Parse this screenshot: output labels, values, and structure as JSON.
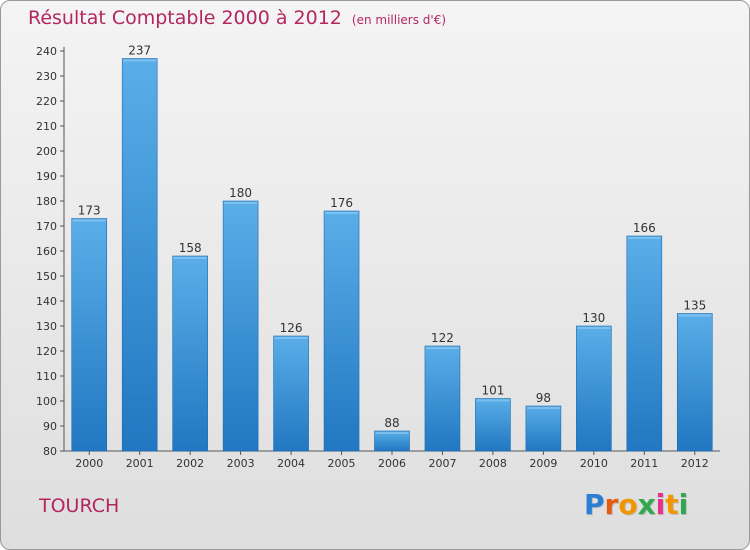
{
  "title": "Résultat Comptable 2000 à 2012",
  "subtitle": "(en milliers d'€)",
  "commune": "TOURCH",
  "brand": {
    "letters": [
      "P",
      "r",
      "o",
      "x",
      "i",
      "t",
      "i"
    ],
    "colors": [
      "#2a7fd4",
      "#e65c0f",
      "#f29600",
      "#2fa84f",
      "#e6308a",
      "#f29600",
      "#2fa84f"
    ]
  },
  "colors": {
    "bar_top": "#5aaee8",
    "bar_bottom": "#2177c1",
    "title": "#b3275e"
  },
  "chart_data": {
    "type": "bar",
    "title": "Résultat Comptable 2000 à 2012",
    "subtitle": "(en milliers d'€)",
    "xlabel": "",
    "ylabel": "",
    "categories": [
      "2000",
      "2001",
      "2002",
      "2003",
      "2004",
      "2005",
      "2006",
      "2007",
      "2008",
      "2009",
      "2010",
      "2011",
      "2012"
    ],
    "values": [
      173,
      237,
      158,
      180,
      126,
      176,
      88,
      122,
      101,
      98,
      130,
      166,
      135
    ],
    "ylim": [
      80,
      240
    ],
    "yticks": [
      80,
      90,
      100,
      110,
      120,
      130,
      140,
      150,
      160,
      170,
      180,
      190,
      200,
      210,
      220,
      230,
      240
    ],
    "grid": false,
    "legend": "none"
  }
}
